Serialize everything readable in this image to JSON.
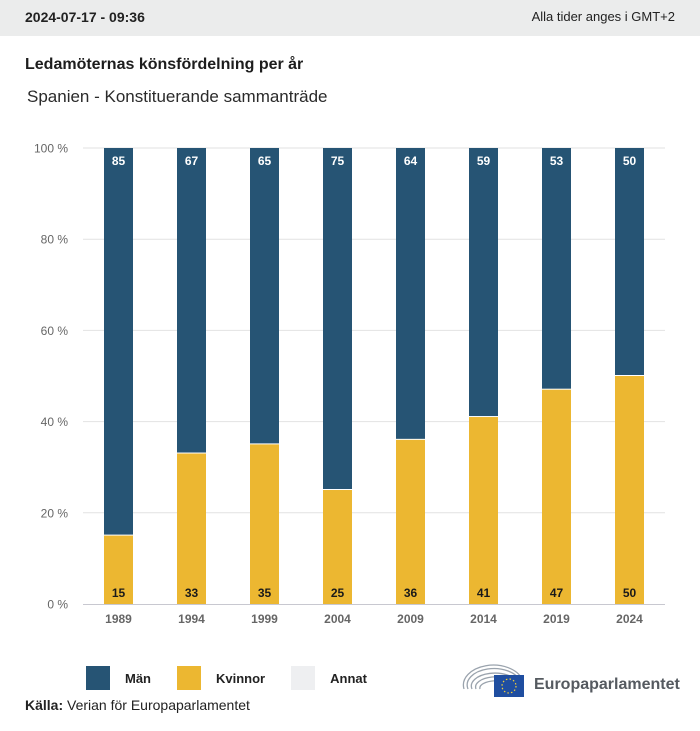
{
  "header": {
    "timestamp": "2024-07-17 - 09:36",
    "timezone_note": "Alla tider anges i GMT+2"
  },
  "title": "Ledamöternas könsfördelning per år",
  "subtitle": "Spanien - Konstituerande sammanträde",
  "colors": {
    "men": "#265474",
    "women": "#ecb731",
    "other": "#eeeff1",
    "grid": "#e2e2e2",
    "axis": "#c8c8d0"
  },
  "chart_data": {
    "type": "bar",
    "stacked": true,
    "title": "Ledamöternas könsfördelning per år",
    "subtitle": "Spanien - Konstituerande sammanträde",
    "xlabel": "",
    "ylabel": "",
    "ylim": [
      0,
      100
    ],
    "yticks": [
      "0 %",
      "20 %",
      "40 %",
      "60 %",
      "80 %",
      "100 %"
    ],
    "ytick_values": [
      0,
      20,
      40,
      60,
      80,
      100
    ],
    "grid": true,
    "categories": [
      "1989",
      "1994",
      "1999",
      "2004",
      "2009",
      "2014",
      "2019",
      "2024"
    ],
    "series": [
      {
        "name": "Kvinnor",
        "values": [
          15,
          33,
          35,
          25,
          36,
          41,
          47,
          50
        ]
      },
      {
        "name": "Män",
        "values": [
          85,
          67,
          65,
          75,
          64,
          59,
          53,
          50
        ]
      },
      {
        "name": "Annat",
        "values": [
          0,
          0,
          0,
          0,
          0,
          0,
          0,
          0
        ]
      }
    ],
    "legend": [
      "Män",
      "Kvinnor",
      "Annat"
    ],
    "legend_position": "bottom-left"
  },
  "legend": {
    "men": "Män",
    "women": "Kvinnor",
    "other": "Annat"
  },
  "source": {
    "label": "Källa:",
    "text": "Verian för Europaparlamentet"
  },
  "logo": {
    "text": "Europaparlamentet"
  }
}
